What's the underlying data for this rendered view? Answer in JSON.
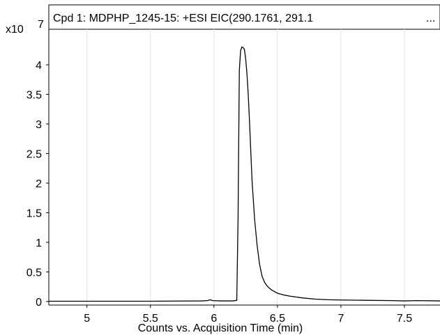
{
  "chart_data": {
    "type": "line",
    "title": "Cpd 1: MDPHP_1245-15: +ESI EIC(290.1761, 291.1",
    "title_overflow_indicator": "...",
    "y_multiplier_label": "x10",
    "y_multiplier_exponent": "7",
    "xlabel": "Counts vs. Acquisition Time (min)",
    "ylabel": "",
    "xlim": [
      4.7,
      7.78
    ],
    "ylim": [
      -0.06,
      4.6
    ],
    "x_ticks": [
      5,
      5.5,
      6,
      6.5,
      7,
      7.5
    ],
    "x_tick_labels": [
      "5",
      "5.5",
      "6",
      "6.5",
      "7",
      "7.5"
    ],
    "y_ticks": [
      0,
      0.5,
      1,
      1.5,
      2,
      2.5,
      3,
      3.5,
      4
    ],
    "y_tick_labels": [
      "0",
      "0.5",
      "1",
      "1.5",
      "2",
      "2.5",
      "3",
      "3.5",
      "4"
    ],
    "grid": "vertical",
    "legend": "none",
    "line_color": "#000000",
    "grid_color": "#e3e3e3",
    "series": [
      {
        "x": [
          4.7,
          5.0,
          5.5,
          5.9,
          5.95,
          5.97,
          5.99,
          6.05,
          6.1,
          6.15,
          6.18,
          6.19,
          6.2,
          6.21,
          6.22,
          6.23,
          6.24,
          6.25,
          6.26,
          6.27,
          6.28,
          6.29,
          6.3,
          6.32,
          6.34,
          6.36,
          6.38,
          6.4,
          6.42,
          6.45,
          6.5,
          6.55,
          6.6,
          6.7,
          6.8,
          6.9,
          7.0,
          7.2,
          7.4,
          7.5,
          7.6,
          7.78
        ],
        "y": [
          0.005,
          0.005,
          0.005,
          0.01,
          0.015,
          0.03,
          0.015,
          0.01,
          0.01,
          0.01,
          0.02,
          1.4,
          3.9,
          4.24,
          4.3,
          4.29,
          4.26,
          4.1,
          3.85,
          3.5,
          3.05,
          2.55,
          2.05,
          1.4,
          0.95,
          0.62,
          0.42,
          0.32,
          0.26,
          0.2,
          0.14,
          0.11,
          0.09,
          0.06,
          0.04,
          0.03,
          0.025,
          0.02,
          0.015,
          0.01,
          0.015,
          0.01
        ]
      }
    ]
  }
}
